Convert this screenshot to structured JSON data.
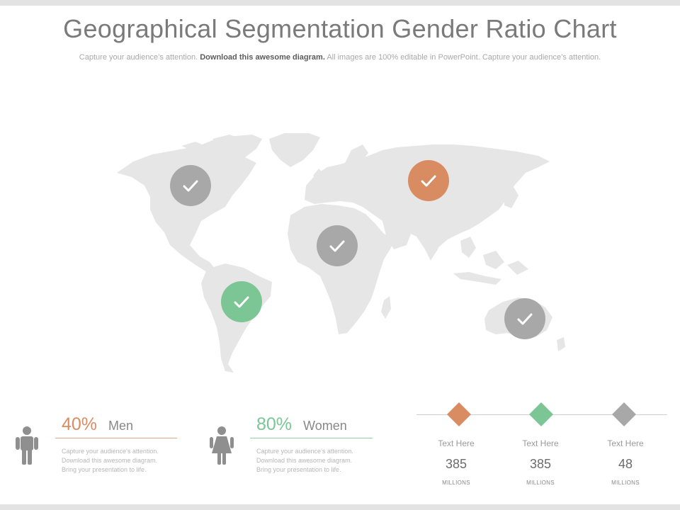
{
  "title": "Geographical Segmentation Gender Ratio Chart",
  "subtitle": {
    "part1": "Capture your audience’s attention.",
    "bold": "Download this awesome diagram.",
    "part2": "All images are 100% editable in PowerPoint. Capture your audience’s attention."
  },
  "colors": {
    "map": "#e6e6e6",
    "gray": "#a8a8a8",
    "orange": "#d98c61",
    "green": "#7cc595"
  },
  "markers": [
    {
      "region": "North America",
      "color": "gray",
      "icon": "check-icon"
    },
    {
      "region": "Russia",
      "color": "orange",
      "icon": "check-icon"
    },
    {
      "region": "Africa",
      "color": "gray",
      "icon": "check-icon"
    },
    {
      "region": "South America",
      "color": "green",
      "icon": "check-icon"
    },
    {
      "region": "Australia",
      "color": "gray",
      "icon": "check-icon"
    }
  ],
  "men": {
    "percent": "40%",
    "label": "Men",
    "desc_lines": [
      "Capture your audience’s attention.",
      "Download this  awesome diagram.",
      "Bring your presentation to life."
    ],
    "icon": "male-person-icon"
  },
  "women": {
    "percent": "80%",
    "label": "Women",
    "desc_lines": [
      "Capture your audience’s attention.",
      "Download this  awesome diagram.",
      "Bring your presentation to life."
    ],
    "icon": "female-person-icon"
  },
  "metrics": [
    {
      "label": "Text Here",
      "value": "385",
      "unit": "MILLIONS",
      "color": "orange"
    },
    {
      "label": "Text Here",
      "value": "385",
      "unit": "MILLIONS",
      "color": "green"
    },
    {
      "label": "Text Here",
      "value": "48",
      "unit": "MILLIONS",
      "color": "gray"
    }
  ]
}
